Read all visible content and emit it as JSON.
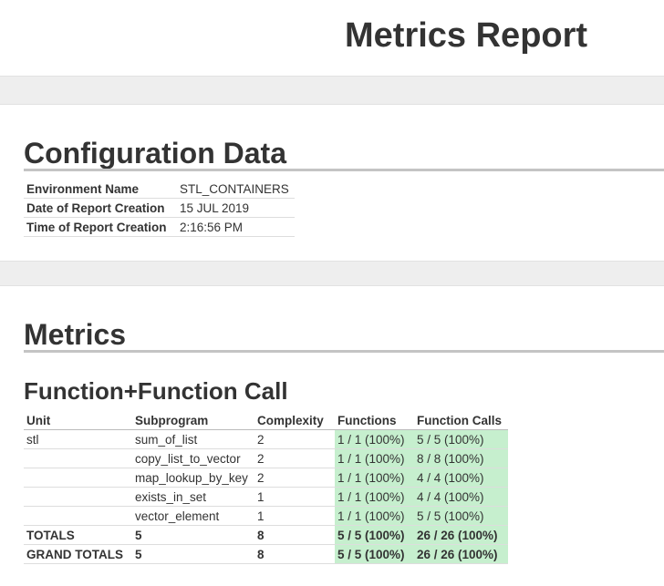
{
  "header": {
    "title": "Metrics Report"
  },
  "configuration": {
    "title": "Configuration Data",
    "rows": [
      {
        "label": "Environment Name",
        "value": "STL_CONTAINERS"
      },
      {
        "label": "Date of Report Creation",
        "value": "15 JUL 2019"
      },
      {
        "label": "Time of Report Creation",
        "value": "2:16:56 PM"
      }
    ]
  },
  "metrics": {
    "title": "Metrics",
    "subtitle": "Function+Function Call",
    "columns": [
      "Unit",
      "Subprogram",
      "Complexity",
      "Functions",
      "Function Calls"
    ],
    "rows": [
      {
        "unit": "stl",
        "subprogram": "sum_of_list",
        "complexity": "2",
        "functions": "1 / 1 (100%)",
        "function_calls": "5 / 5 (100%)"
      },
      {
        "unit": "",
        "subprogram": "copy_list_to_vector",
        "complexity": "2",
        "functions": "1 / 1 (100%)",
        "function_calls": "8 / 8 (100%)"
      },
      {
        "unit": "",
        "subprogram": "map_lookup_by_key",
        "complexity": "2",
        "functions": "1 / 1 (100%)",
        "function_calls": "4 / 4 (100%)"
      },
      {
        "unit": "",
        "subprogram": "exists_in_set",
        "complexity": "1",
        "functions": "1 / 1 (100%)",
        "function_calls": "4 / 4 (100%)"
      },
      {
        "unit": "",
        "subprogram": "vector_element",
        "complexity": "1",
        "functions": "1 / 1 (100%)",
        "function_calls": "5 / 5 (100%)"
      }
    ],
    "totals": [
      {
        "unit": "TOTALS",
        "subprogram": "5",
        "complexity": "8",
        "functions": "5 / 5 (100%)",
        "function_calls": "26 / 26 (100%)"
      },
      {
        "unit": "GRAND TOTALS",
        "subprogram": "5",
        "complexity": "8",
        "functions": "5 / 5 (100%)",
        "function_calls": "26 / 26 (100%)"
      }
    ],
    "coverage_color": "#c6efce"
  }
}
